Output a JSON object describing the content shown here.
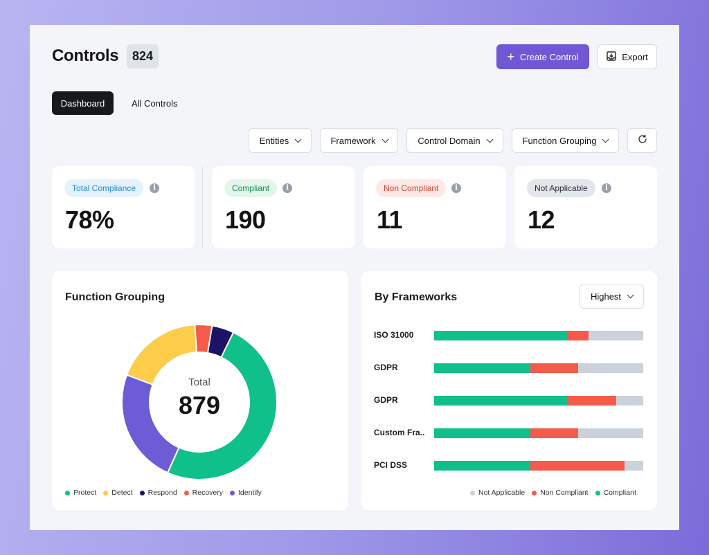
{
  "header": {
    "title": "Controls",
    "count": "824",
    "create_label": "Create Control",
    "export_label": "Export"
  },
  "tabs": [
    {
      "label": "Dashboard",
      "active": true
    },
    {
      "label": "All Controls",
      "active": false
    }
  ],
  "filters": [
    {
      "label": "Entities"
    },
    {
      "label": "Framework"
    },
    {
      "label": "Control Domain"
    },
    {
      "label": "Function Grouping"
    }
  ],
  "stats": [
    {
      "label": "Total Compliance",
      "value": "78%",
      "pill_bg": "#e3f2fb",
      "pill_fg": "#2a8bd6"
    },
    {
      "label": "Compliant",
      "value": "190",
      "pill_bg": "#e3f6ec",
      "pill_fg": "#17884f"
    },
    {
      "label": "Non Compliant",
      "value": "11",
      "pill_bg": "#fde8e5",
      "pill_fg": "#d8412f"
    },
    {
      "label": "Not Applicable",
      "value": "12",
      "pill_bg": "#e3e6eb",
      "pill_fg": "#2c3038"
    }
  ],
  "function_grouping": {
    "title": "Function Grouping",
    "total_label": "Total",
    "total_value": "879",
    "legend": [
      {
        "label": "Protect",
        "color": "#10c08a"
      },
      {
        "label": "Detect",
        "color": "#fdcd4a"
      },
      {
        "label": "Respond",
        "color": "#1b1464"
      },
      {
        "label": "Recovery",
        "color": "#f55b4c"
      },
      {
        "label": "Identify",
        "color": "#6c5cd6"
      }
    ]
  },
  "frameworks": {
    "title": "By Frameworks",
    "sort_label": "Highest",
    "legend": [
      {
        "label": "Not Applicable",
        "color": "#cbd2dc"
      },
      {
        "label": "Non Compliant",
        "color": "#f55b4c"
      },
      {
        "label": "Compliant",
        "color": "#10c08a"
      }
    ],
    "colors": {
      "compliant": "#10c08a",
      "non_compliant": "#f55b4c",
      "not_applicable": "#cbd2dc"
    }
  },
  "chart_data": [
    {
      "type": "pie",
      "title": "Function Grouping",
      "categories": [
        "Protect",
        "Identify",
        "Detect",
        "Recovery",
        "Respond"
      ],
      "values": [
        48.5,
        23.5,
        18,
        3.5,
        4.5
      ],
      "total": 879
    },
    {
      "type": "bar",
      "title": "By Frameworks",
      "categories": [
        "ISO 31000",
        "GDPR",
        "GDPR",
        "Custom Fra..",
        "PCI DSS"
      ],
      "series": [
        {
          "name": "Compliant",
          "values": [
            64,
            46,
            64,
            46,
            46
          ]
        },
        {
          "name": "Non Compliant",
          "values": [
            10,
            23,
            23,
            23,
            45
          ]
        },
        {
          "name": "Not Applicable",
          "values": [
            26,
            31,
            13,
            31,
            9
          ]
        }
      ],
      "stacked": true,
      "unit": "percent"
    }
  ]
}
